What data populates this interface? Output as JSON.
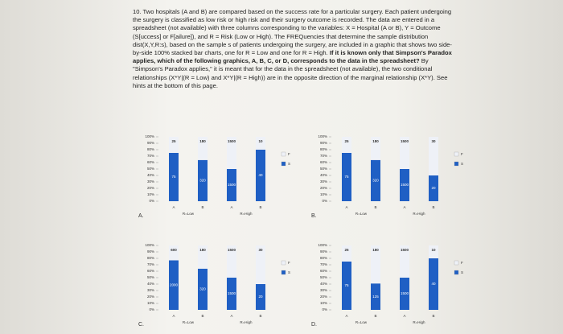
{
  "question": {
    "number": "10.",
    "parts": [
      {
        "text": "Two hospitals (A and B) are compared based on the success rate for a particular surgery. Each patient undergoing the surgery is classified as low risk or high risk and their surgery outcome is recorded. The data are entered in a spreadsheet (not available) with three columns corresponding to the variables: X = Hospital (A or B), Y = Outcome (S[uccess] or F[ailure]), and R = Risk (Low or High). The FREQuencies that determine the sample distribution dist(X,Y,R:s), based on the sample s of patients undergoing the surgery, are included in a graphic that shows two side-by-side 100% stacked bar charts, one for R = Low and one for R = High.",
        "bold": false
      },
      {
        "text": "If it is known only that Simpson's Paradox applies, which of the following graphics, A, B, C, or D, corresponds to the data in the spreadsheet?",
        "bold": true
      },
      {
        "text": "By \"Simpson's Paradox applies,\" it is meant that for the data in the spreadsheet (not available), the two conditional relationships (X*Y|(R = Low) and X*Y|(R = High)) are in the opposite direction of the marginal relationship (X*Y). See hints at the bottom of this page.",
        "bold": false
      }
    ]
  },
  "graphics": [
    {
      "label": "A.",
      "groups": [
        "R=Low",
        "R=High"
      ],
      "legend": [
        "F",
        "S"
      ],
      "bars": [
        {
          "name": "A",
          "fail": 25,
          "success": 75
        },
        {
          "name": "B",
          "fail": 180,
          "success": 320
        },
        {
          "name": "A",
          "fail": 1500,
          "success": 1500
        },
        {
          "name": "B",
          "fail": 10,
          "success": 40
        }
      ]
    },
    {
      "label": "B.",
      "groups": [
        "R=Low",
        "R=High"
      ],
      "legend": [
        "F",
        "S"
      ],
      "bars": [
        {
          "name": "A",
          "fail": 25,
          "success": 75
        },
        {
          "name": "B",
          "fail": 180,
          "success": 320
        },
        {
          "name": "A",
          "fail": 1500,
          "success": 1500
        },
        {
          "name": "B",
          "fail": 30,
          "success": 20
        }
      ]
    },
    {
      "label": "C.",
      "groups": [
        "R=Low",
        "R=High"
      ],
      "legend": [
        "F",
        "S"
      ],
      "bars": [
        {
          "name": "A",
          "fail": 600,
          "success": 2000
        },
        {
          "name": "B",
          "fail": 180,
          "success": 320
        },
        {
          "name": "A",
          "fail": 1500,
          "success": 1500
        },
        {
          "name": "B",
          "fail": 30,
          "success": 20
        }
      ]
    },
    {
      "label": "D.",
      "groups": [
        "R=Low",
        "R=High"
      ],
      "legend": [
        "F",
        "S"
      ],
      "bars": [
        {
          "name": "A",
          "fail": 25,
          "success": 75
        },
        {
          "name": "B",
          "fail": 180,
          "success": 125
        },
        {
          "name": "A",
          "fail": 1500,
          "success": 1500
        },
        {
          "name": "B",
          "fail": 10,
          "success": 40
        }
      ]
    }
  ],
  "yticks": [
    {
      "value": 0,
      "label": "0%"
    },
    {
      "value": 10,
      "label": "10%"
    },
    {
      "value": 20,
      "label": "20%"
    },
    {
      "value": 30,
      "label": "30%"
    },
    {
      "value": 40,
      "label": "40%"
    },
    {
      "value": 50,
      "label": "50%"
    },
    {
      "value": 60,
      "label": "60%"
    },
    {
      "value": 70,
      "label": "70%"
    },
    {
      "value": 80,
      "label": "80%"
    },
    {
      "value": 90,
      "label": "90%"
    },
    {
      "value": 100,
      "label": "100%"
    }
  ],
  "colors": {
    "fail": "#eef1f7",
    "success": "#1f5fc4"
  }
}
